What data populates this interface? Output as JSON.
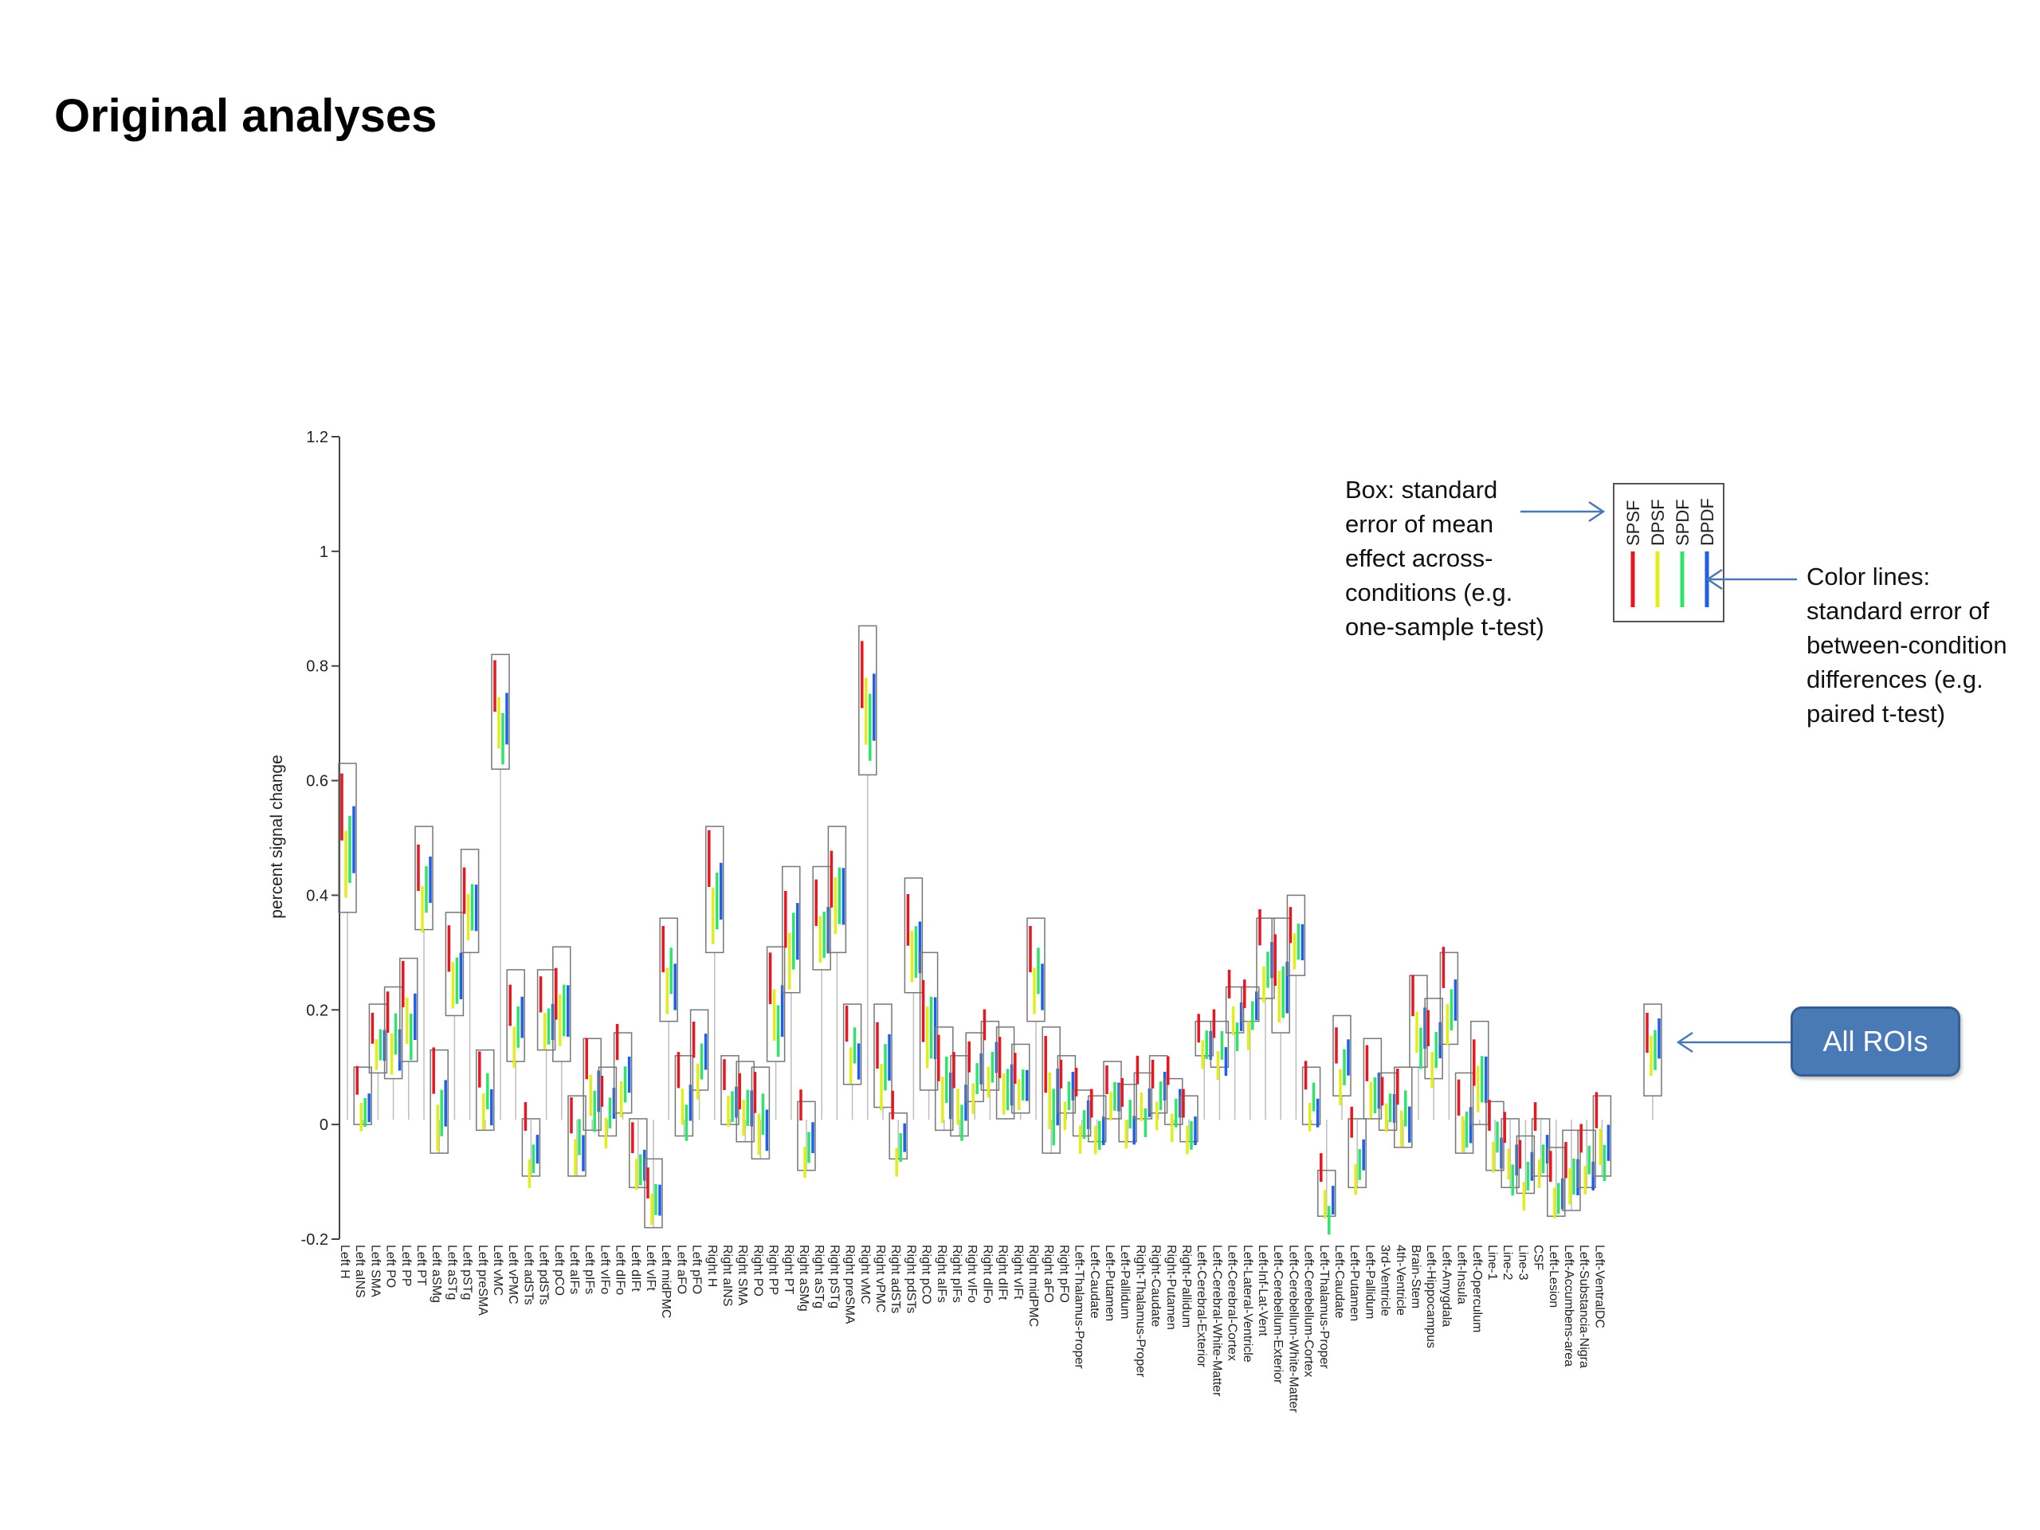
{
  "slide": {
    "title": "Original analyses",
    "annotation_box": [
      "Box: standard",
      "error of mean",
      "effect across-",
      "conditions (e.g.",
      "one-sample t-test)"
    ],
    "annotation_lines": [
      "Color lines:",
      "standard error of",
      "between-condition",
      "differences (e.g.",
      "paired t-test)"
    ],
    "all_rois_label": "All ROIs",
    "accent_color": "#4a7ab6"
  },
  "chart_data": {
    "type": "box-error",
    "ylabel": "percent signal change",
    "xlabel": "",
    "ylim": [
      -0.2,
      1.2
    ],
    "yticks": [
      -0.2,
      0,
      0.2,
      0.4,
      0.6,
      0.8,
      1,
      1.2
    ],
    "ytick_labels": [
      "-0.2",
      "0",
      "0.2",
      "0.4",
      "0.6",
      "0.8",
      "1",
      "1.2"
    ],
    "legend": {
      "placement": "top-right",
      "entries": [
        {
          "name": "SPSF",
          "color": "#e8171f"
        },
        {
          "name": "DPSF",
          "color": "#e2ee1a"
        },
        {
          "name": "SPDF",
          "color": "#2ee56a"
        },
        {
          "name": "DPDF",
          "color": "#1d5fe6"
        }
      ]
    },
    "categories": [
      "Left H",
      "Left aINS",
      "Left SMA",
      "Left PO",
      "Left PP",
      "Left PT",
      "Left aSMg",
      "Left aSTg",
      "Left pSTg",
      "Left preSMA",
      "Left vMC",
      "Left vPMC",
      "Left adSTs",
      "Left pdSTs",
      "Left pCO",
      "Left aIFs",
      "Left pIFs",
      "Left vIFo",
      "Left dIFo",
      "Left dIFt",
      "Left vIFt",
      "Left midPMC",
      "Left aFO",
      "Left pFO",
      "Right H",
      "Right aINS",
      "Right SMA",
      "Right PO",
      "Right PP",
      "Right PT",
      "Right aSMg",
      "Right aSTg",
      "Right pSTg",
      "Right preSMA",
      "Right vMC",
      "Right vPMC",
      "Right adSTs",
      "Right pdSTs",
      "Right pCO",
      "Right aIFs",
      "Right pIFs",
      "Right vIFo",
      "Right dIFo",
      "Right dIFt",
      "Right vIFt",
      "Right midPMC",
      "Right aFO",
      "Right pFO",
      "Left-Thalamus-Proper",
      "Left-Caudate",
      "Left-Putamen",
      "Left-Pallidum",
      "Right-Thalamus-Proper",
      "Right-Caudate",
      "Right-Putamen",
      "Right-Pallidum",
      "Left-Cerebral-Exterior",
      "Left-Cerebral-White-Matter",
      "Left-Cerebral-Cortex",
      "Left-Lateral-Ventricle",
      "Left-Inf-Lat-Vent",
      "Left-Cerebellum-Exterior",
      "Left-Cerebellum-White-Matter",
      "Left-Cerebellum-Cortex",
      "Left-Thalamus-Proper",
      "Left-Caudate",
      "Left-Putamen",
      "Left-Pallidum",
      "3rd-Ventricle",
      "4th-Ventricle",
      "Brain-Stem",
      "Left-Hippocampus",
      "Left-Amygdala",
      "Left-Insula",
      "Left-Operculum",
      "Line-1",
      "Line-2",
      "Line-3",
      "CSF",
      "Left-Lesion",
      "Left-Accumbens-area",
      "Left-Substancia-Nigra",
      "Left-VentralDC"
    ],
    "means": [
      0.5,
      0.05,
      0.15,
      0.16,
      0.2,
      0.43,
      0.04,
      0.28,
      0.39,
      0.06,
      0.72,
      0.19,
      -0.04,
      0.2,
      0.21,
      -0.02,
      0.07,
      0.04,
      0.09,
      -0.05,
      -0.12,
      0.27,
      0.05,
      0.13,
      0.41,
      0.06,
      0.04,
      0.02,
      0.21,
      0.34,
      -0.02,
      0.36,
      0.41,
      0.14,
      0.74,
      0.12,
      -0.02,
      0.33,
      0.18,
      0.08,
      0.05,
      0.1,
      0.12,
      0.09,
      0.08,
      0.27,
      0.06,
      0.07,
      0.02,
      0.01,
      0.06,
      0.02,
      0.05,
      0.07,
      0.04,
      0.01,
      0.15,
      0.14,
      0.2,
      0.21,
      0.29,
      0.26,
      0.33,
      0.05,
      -0.12,
      0.12,
      -0.05,
      0.08,
      0.04,
      0.03,
      0.18,
      0.15,
      0.22,
      0.02,
      0.09,
      -0.02,
      -0.05,
      -0.07,
      -0.04,
      -0.1,
      -0.08,
      -0.06,
      -0.02
    ],
    "box_se": [
      0.13,
      0.05,
      0.06,
      0.08,
      0.09,
      0.09,
      0.09,
      0.09,
      0.09,
      0.07,
      0.1,
      0.08,
      0.05,
      0.07,
      0.1,
      0.07,
      0.08,
      0.06,
      0.07,
      0.06,
      0.06,
      0.09,
      0.07,
      0.07,
      0.11,
      0.06,
      0.07,
      0.08,
      0.1,
      0.11,
      0.06,
      0.09,
      0.11,
      0.07,
      0.13,
      0.09,
      0.04,
      0.1,
      0.12,
      0.09,
      0.07,
      0.06,
      0.06,
      0.08,
      0.06,
      0.09,
      0.11,
      0.05,
      0.04,
      0.04,
      0.05,
      0.05,
      0.04,
      0.05,
      0.04,
      0.04,
      0.03,
      0.04,
      0.04,
      0.03,
      0.07,
      0.1,
      0.07,
      0.05,
      0.04,
      0.07,
      0.06,
      0.07,
      0.05,
      0.07,
      0.08,
      0.07,
      0.08,
      0.07,
      0.09,
      0.06,
      0.06,
      0.05,
      0.05,
      0.06,
      0.07,
      0.05,
      0.07
    ],
    "condition_offsets": [
      [
        0.06,
        -0.04,
        0.0,
        0.03
      ],
      [
        0.03,
        -0.03,
        -0.01,
        0.01
      ],
      [
        0.02,
        -0.02,
        0.01,
        0.02
      ],
      [
        0.04,
        -0.03,
        0.02,
        0.0
      ],
      [
        0.05,
        -0.01,
        -0.03,
        0.02
      ],
      [
        0.02,
        -0.05,
        0.0,
        0.03
      ]
    ],
    "all_rois": {
      "mean": 0.13,
      "box_se": 0.08
    },
    "grid": false
  }
}
